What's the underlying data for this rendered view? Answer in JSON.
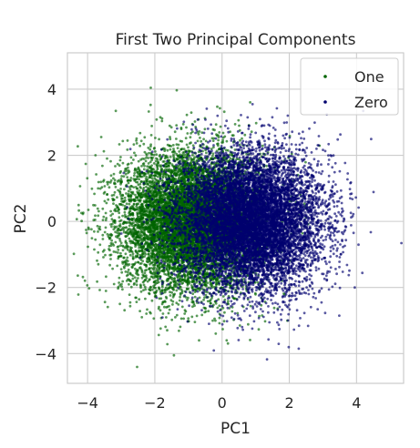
{
  "chart_data": {
    "type": "scatter",
    "title": "First Two Principal Components",
    "xlabel": "PC1",
    "ylabel": "PC2",
    "xlim": [
      -4.6,
      5.4
    ],
    "ylim": [
      -4.9,
      5.1
    ],
    "xticks": [
      -4,
      -2,
      0,
      2,
      4
    ],
    "yticks": [
      -4,
      -2,
      0,
      2,
      4
    ],
    "xtick_labels": [
      "−4",
      "−2",
      "0",
      "2",
      "4"
    ],
    "ytick_labels": [
      "−4",
      "−2",
      "0",
      "2",
      "4"
    ],
    "grid": true,
    "legend_position": "top-right",
    "series": [
      {
        "name": "One",
        "color": "#006400",
        "center": [
          -0.9,
          0.0
        ],
        "spread": [
          1.05,
          1.05
        ],
        "point_count": 9000
      },
      {
        "name": "Zero",
        "color": "#00006e",
        "center": [
          0.9,
          0.0
        ],
        "spread": [
          1.05,
          1.05
        ],
        "point_count": 9000
      }
    ]
  }
}
